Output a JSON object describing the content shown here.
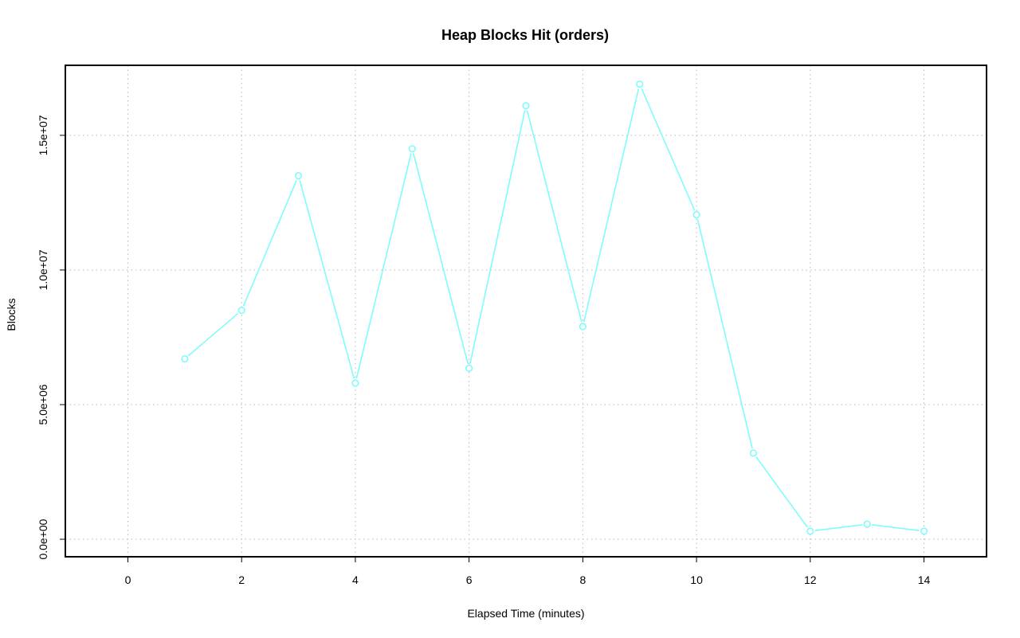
{
  "chart_data": {
    "type": "line",
    "title": "Heap Blocks Hit (orders)",
    "xlabel": "Elapsed Time (minutes)",
    "ylabel": "Blocks",
    "xlim": [
      -1.1,
      15.1
    ],
    "ylim": [
      -650000,
      17600000
    ],
    "x_ticks": [
      0,
      2,
      4,
      6,
      8,
      10,
      12,
      14
    ],
    "x_tick_labels": [
      "0",
      "2",
      "4",
      "6",
      "8",
      "10",
      "12",
      "14"
    ],
    "y_ticks": [
      0,
      5000000,
      10000000,
      15000000
    ],
    "y_tick_labels": [
      "0.0e+00",
      "5.0e+06",
      "1.0e+07",
      "1.5e+07"
    ],
    "grid": true,
    "series": [
      {
        "color": "#7ffcfc",
        "x": [
          1,
          2,
          3,
          4,
          5,
          6,
          7,
          8,
          9,
          10,
          11,
          12,
          13,
          14
        ],
        "values": [
          6700000,
          8500000,
          13500000,
          5800000,
          14500000,
          6350000,
          16100000,
          7900000,
          16900000,
          12050000,
          3200000,
          300000,
          560000,
          300000
        ]
      }
    ]
  }
}
